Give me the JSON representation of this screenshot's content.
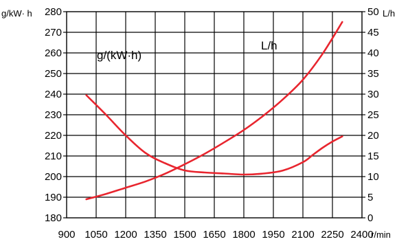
{
  "chart_data": {
    "type": "line",
    "x_ticks": [
      900,
      1050,
      1200,
      1350,
      1500,
      1650,
      1800,
      1950,
      2100,
      2250,
      2400
    ],
    "xlim": [
      900,
      2400
    ],
    "x_unit": "r/min",
    "y_left": {
      "unit": "g/kW· h",
      "ticks": [
        180,
        190,
        200,
        210,
        220,
        230,
        240,
        250,
        260,
        270,
        280
      ],
      "lim": [
        180,
        280
      ]
    },
    "y_right": {
      "unit": "L/h",
      "ticks": [
        0,
        5,
        10,
        15,
        20,
        25,
        30,
        35,
        40,
        45,
        50
      ],
      "lim": [
        0,
        50
      ]
    },
    "annotations": {
      "left_series": "g/(kW·h)",
      "right_series": "L/h"
    },
    "grid": true,
    "series": [
      {
        "axis": "left",
        "color": "#e8252e",
        "x": [
          1000,
          1100,
          1200,
          1300,
          1400,
          1500,
          1600,
          1700,
          1800,
          1900,
          2000,
          2100,
          2150,
          2200,
          2250,
          2300
        ],
        "values": [
          239.5,
          230,
          220,
          211.5,
          206.5,
          203,
          202,
          201.5,
          201,
          201.5,
          203,
          207,
          210.5,
          214,
          217,
          219.5
        ]
      },
      {
        "axis": "right",
        "color": "#e8252e",
        "x": [
          1000,
          1100,
          1200,
          1300,
          1400,
          1500,
          1600,
          1700,
          1800,
          1900,
          2000,
          2100,
          2200,
          2300
        ],
        "values": [
          4.5,
          5.8,
          7.3,
          8.8,
          10.7,
          13.0,
          15.5,
          18.3,
          21.3,
          24.8,
          28.8,
          33.5,
          39.8,
          47.5
        ]
      }
    ]
  }
}
